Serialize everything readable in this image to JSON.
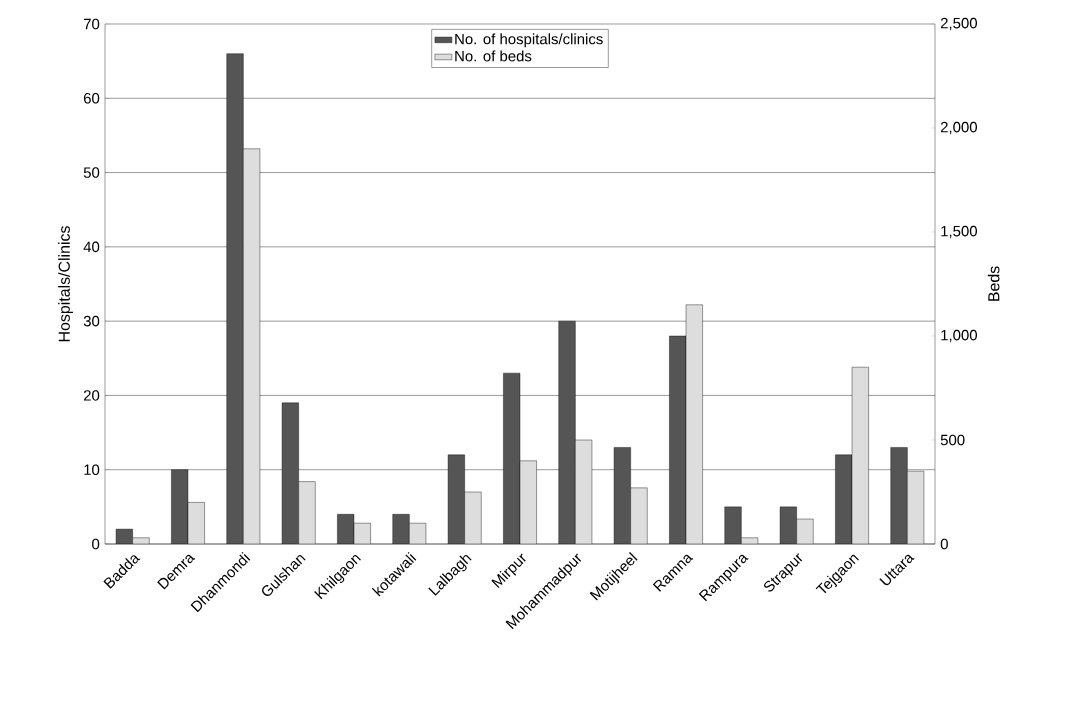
{
  "chart_data": {
    "type": "bar",
    "ylabel": "Hospitals/Clinics",
    "y2label": "Beds",
    "categories": [
      "Badda",
      "Demra",
      "Dhanmondi",
      "Gulshan",
      "Khilgaon",
      "kotawali",
      "Lalbagh",
      "Mirpur",
      "Mohammadpur",
      "Motijheel",
      "Ramna",
      "Rampura",
      "Strapur",
      "Tejgaon",
      "Uttara"
    ],
    "series": [
      {
        "name": "No. of hospitals/clinics",
        "color": "#555555",
        "values": [
          2,
          10,
          66,
          19,
          4,
          4,
          12,
          23,
          30,
          13,
          28,
          5,
          5,
          12,
          13
        ]
      },
      {
        "name": "No. of beds",
        "color": "#dddddd",
        "axis": "y2",
        "values": [
          30,
          200,
          1900,
          300,
          100,
          100,
          250,
          400,
          500,
          270,
          1150,
          30,
          120,
          850,
          350
        ]
      }
    ],
    "ylim": [
      0,
      70
    ],
    "yticks": [
      0,
      10,
      20,
      30,
      40,
      50,
      60,
      70
    ],
    "y2lim": [
      0,
      2500
    ],
    "y2ticks": [
      0,
      {
        "value": 500,
        "label": "500"
      },
      {
        "value": 1000,
        "label": "1,000"
      },
      {
        "value": 1500,
        "label": "1,500"
      },
      {
        "value": 2000,
        "label": "2,000"
      },
      {
        "value": 2500,
        "label": "2,500"
      }
    ],
    "grid": "y",
    "legend": "top"
  }
}
